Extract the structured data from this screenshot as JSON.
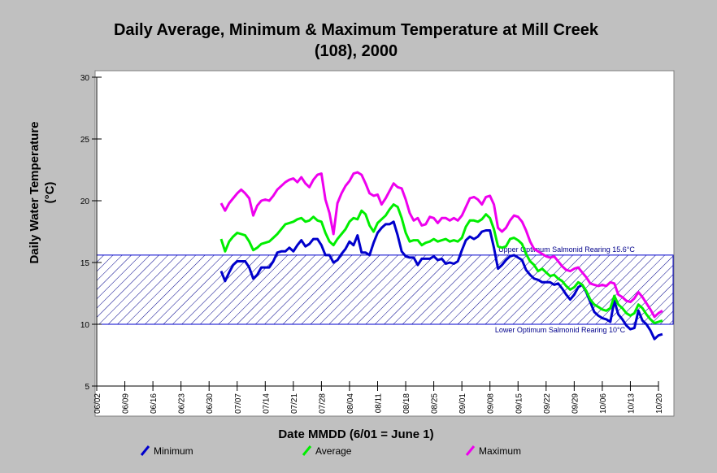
{
  "chart_data": {
    "type": "line",
    "title_line1": "Daily Average, Minimum & Maximum Temperature at Mill Creek",
    "title_line2": "(108), 2000",
    "xlabel": "Date MMDD (6/01 = June 1)",
    "ylabel_line1": "Daily Water Temperature",
    "ylabel_line2": "(°C)",
    "ylim": [
      5,
      30
    ],
    "yticks": [
      5,
      10,
      15,
      20,
      25,
      30
    ],
    "x_start": "06/02",
    "x_end": "10/20",
    "xticks": [
      "06/02",
      "06/09",
      "06/16",
      "06/23",
      "06/30",
      "07/07",
      "07/14",
      "07/21",
      "07/28",
      "08/04",
      "08/11",
      "08/18",
      "08/25",
      "09/01",
      "09/08",
      "09/15",
      "09/22",
      "09/29",
      "10/06",
      "10/13",
      "10/20"
    ],
    "grid": false,
    "band": {
      "lower": 10.0,
      "upper": 15.6,
      "upper_label": "Upper Optimum Salmonid Rearing 15.6°C",
      "lower_label": "Lower Optimum Salmonid Rearing 10°C",
      "color": "#00008b"
    },
    "series": [
      {
        "name": "Minimum",
        "color": "#0000cc",
        "start": "07/03",
        "values": [
          14.3,
          13.5,
          14.2,
          14.8,
          15.1,
          15.1,
          15.1,
          14.6,
          13.7,
          14.0,
          14.6,
          14.6,
          14.6,
          15.1,
          15.8,
          15.9,
          15.9,
          16.2,
          15.9,
          16.4,
          16.8,
          16.3,
          16.5,
          16.9,
          16.9,
          16.4,
          15.6,
          15.6,
          15.0,
          15.2,
          15.7,
          16.1,
          16.7,
          16.4,
          17.2,
          15.8,
          15.8,
          15.6,
          16.6,
          17.4,
          17.8,
          18.1,
          18.1,
          18.3,
          17.2,
          15.9,
          15.5,
          15.4,
          15.4,
          14.8,
          15.3,
          15.3,
          15.3,
          15.5,
          15.2,
          15.3,
          14.9,
          15.0,
          14.9,
          15.1,
          16.0,
          16.8,
          17.1,
          16.9,
          17.1,
          17.5,
          17.6,
          17.6,
          16.2,
          14.5,
          14.8,
          15.2,
          15.5,
          15.6,
          15.4,
          15.2,
          14.4,
          14.0,
          13.7,
          13.6,
          13.4,
          13.4,
          13.4,
          13.2,
          13.3,
          12.9,
          12.4,
          12.0,
          12.4,
          13.0,
          13.2,
          12.6,
          11.8,
          11.0,
          10.7,
          10.5,
          10.4,
          10.2,
          11.9,
          10.8,
          10.4,
          9.9,
          9.6,
          9.7,
          11.1,
          10.3,
          10.0,
          9.5,
          8.8,
          9.1,
          9.2
        ]
      },
      {
        "name": "Average",
        "color": "#00ee00",
        "start": "07/03",
        "values": [
          16.9,
          15.9,
          16.7,
          17.1,
          17.4,
          17.3,
          17.2,
          16.7,
          16.0,
          16.2,
          16.5,
          16.6,
          16.7,
          17.0,
          17.3,
          17.7,
          18.1,
          18.2,
          18.3,
          18.5,
          18.6,
          18.3,
          18.4,
          18.7,
          18.4,
          18.3,
          17.4,
          16.7,
          16.4,
          16.9,
          17.3,
          17.7,
          18.3,
          18.6,
          18.5,
          19.2,
          18.9,
          18.0,
          17.5,
          18.2,
          18.5,
          18.8,
          19.3,
          19.7,
          19.5,
          18.6,
          17.4,
          16.7,
          16.8,
          16.8,
          16.4,
          16.6,
          16.7,
          16.9,
          16.7,
          16.8,
          16.9,
          16.7,
          16.8,
          16.7,
          17.0,
          17.9,
          18.4,
          18.4,
          18.3,
          18.5,
          18.9,
          18.6,
          17.7,
          16.3,
          16.2,
          16.3,
          16.9,
          17.0,
          16.8,
          16.5,
          15.7,
          15.1,
          14.8,
          14.3,
          14.5,
          14.2,
          13.9,
          14.0,
          13.7,
          13.5,
          13.1,
          12.8,
          13.0,
          13.4,
          13.2,
          12.7,
          12.0,
          11.6,
          11.4,
          11.2,
          11.1,
          11.3,
          12.3,
          11.6,
          11.3,
          10.9,
          10.7,
          10.9,
          11.6,
          11.3,
          10.8,
          10.4,
          10.1,
          10.2,
          10.3
        ]
      },
      {
        "name": "Maximum",
        "color": "#ee00ee",
        "start": "07/03",
        "values": [
          19.8,
          19.2,
          19.8,
          20.2,
          20.6,
          20.9,
          20.6,
          20.2,
          18.8,
          19.6,
          20.0,
          20.1,
          20.0,
          20.4,
          20.9,
          21.2,
          21.5,
          21.7,
          21.8,
          21.5,
          21.9,
          21.4,
          21.1,
          21.7,
          22.1,
          22.2,
          20.1,
          19.0,
          17.3,
          19.8,
          20.6,
          21.2,
          21.6,
          22.2,
          22.3,
          22.1,
          21.4,
          20.6,
          20.4,
          20.5,
          19.7,
          20.2,
          20.8,
          21.4,
          21.1,
          21.0,
          20.1,
          19.0,
          18.4,
          18.6,
          18.0,
          18.1,
          18.7,
          18.6,
          18.2,
          18.6,
          18.6,
          18.4,
          18.6,
          18.4,
          18.8,
          19.5,
          20.2,
          20.3,
          20.1,
          19.7,
          20.3,
          20.4,
          19.7,
          17.8,
          17.5,
          17.8,
          18.4,
          18.8,
          18.7,
          18.3,
          17.6,
          16.7,
          16.1,
          15.9,
          15.7,
          15.5,
          15.4,
          15.5,
          15.1,
          14.7,
          14.4,
          14.3,
          14.5,
          14.6,
          14.2,
          13.8,
          13.3,
          13.2,
          13.1,
          13.2,
          13.1,
          13.4,
          13.3,
          12.4,
          12.2,
          11.9,
          11.8,
          12.1,
          12.6,
          12.2,
          11.7,
          11.2,
          10.6,
          10.9,
          11.1
        ]
      }
    ]
  }
}
